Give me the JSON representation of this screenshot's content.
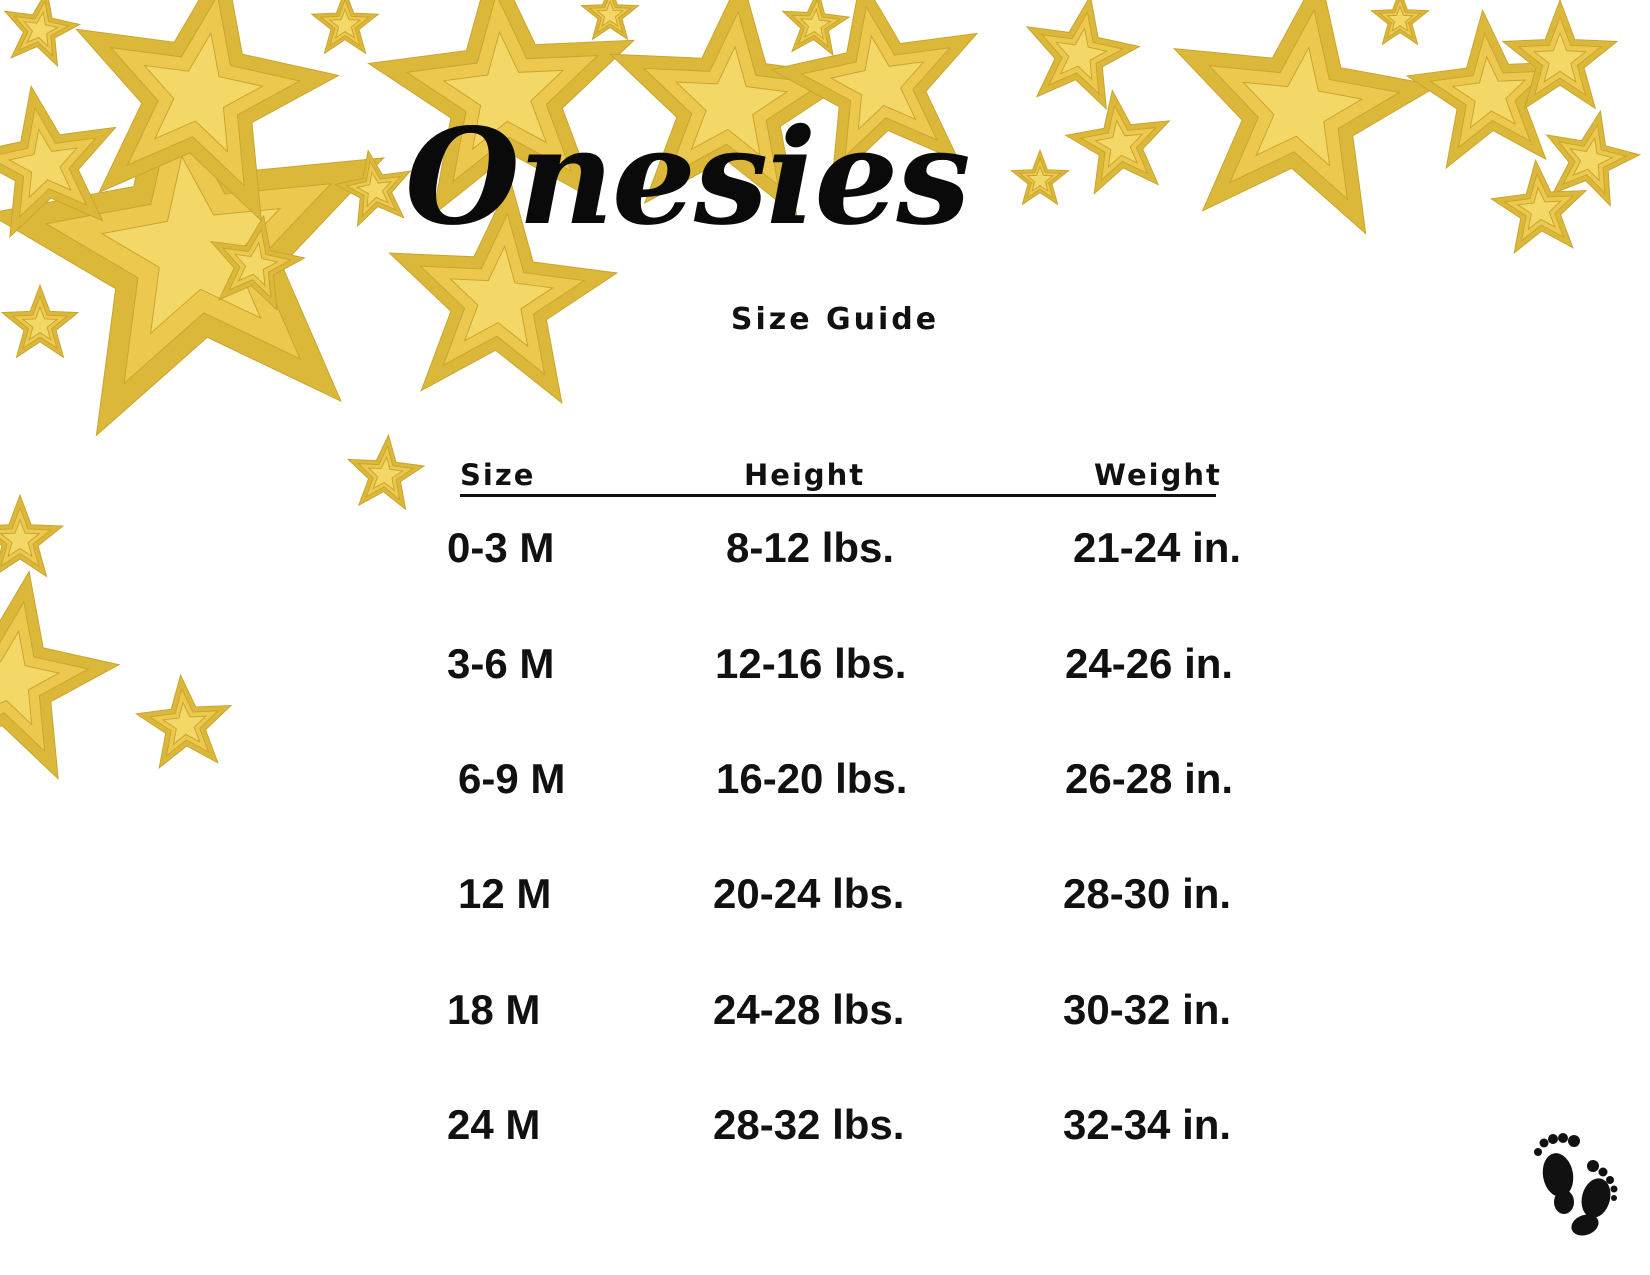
{
  "title": "Onesies",
  "subtitle": "Size Guide",
  "table": {
    "headers": [
      "Size",
      "Height",
      "Weight"
    ],
    "rows": [
      [
        "0-3 M",
        "8-12 lbs.",
        "21-24 in."
      ],
      [
        "3-6 M",
        "12-16 lbs.",
        "24-26 in."
      ],
      [
        "6-9 M",
        "16-20 lbs.",
        "26-28 in."
      ],
      [
        "12 M",
        "20-24 lbs.",
        "28-30 in."
      ],
      [
        "18 M",
        "24-28 lbs.",
        "30-32 in."
      ],
      [
        "24 M",
        "28-32 lbs.",
        "32-34 in."
      ]
    ]
  },
  "colors": {
    "star_gold": "#e8c84a",
    "star_light": "#f2d86a",
    "text": "#111111"
  },
  "icons": [
    "star-decoration",
    "baby-footprints-icon"
  ]
}
